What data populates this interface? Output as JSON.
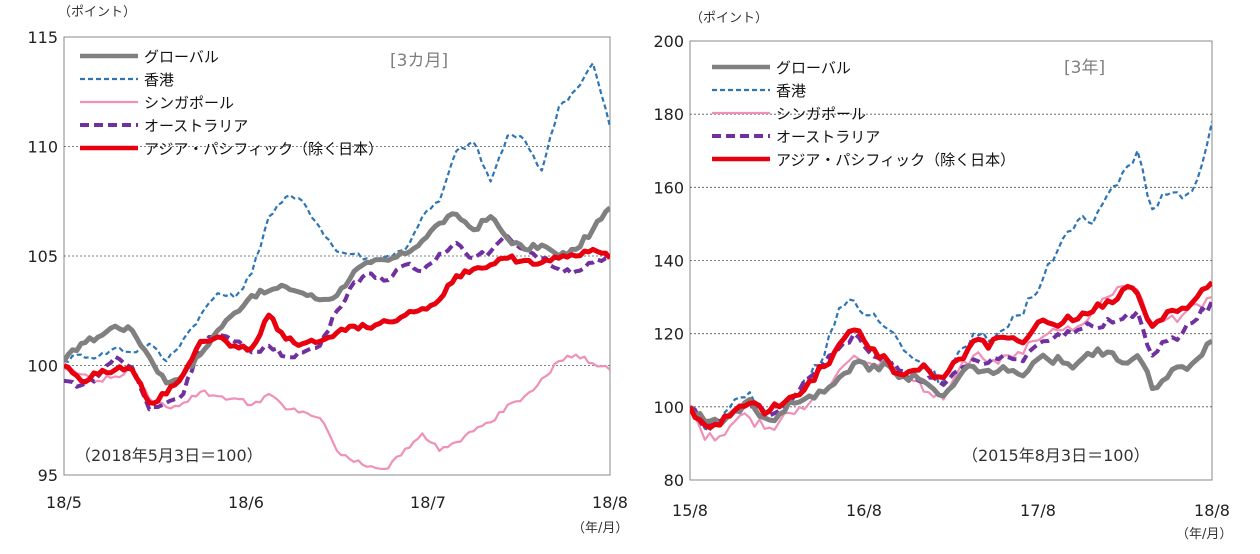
{
  "chart_data": [
    {
      "type": "line",
      "title": "[3カ月]",
      "y_unit": "（ポイント）",
      "x_unit": "（年/月）",
      "note": "（2018年5月3日＝100）",
      "ylim": [
        95,
        115
      ],
      "yticks": [
        "95",
        "100",
        "105",
        "110",
        "115"
      ],
      "xticks": [
        "18/5",
        "18/6",
        "18/7",
        "18/8"
      ],
      "grid": "horizontal dotted",
      "legend_position": "top-left",
      "series": [
        {
          "name": "グローバル",
          "color": "#808080",
          "style": "solid-thick",
          "values": [
            100.2,
            101.0,
            101.3,
            101.8,
            101.6,
            100.4,
            99.2,
            99.6,
            100.5,
            101.6,
            102.4,
            103.2,
            103.4,
            103.6,
            103.3,
            103.0,
            103.2,
            104.3,
            104.7,
            104.8,
            105.1,
            105.7,
            106.5,
            106.9,
            106.2,
            106.8,
            105.8,
            105.3,
            105.5,
            105.0,
            105.3,
            106.2,
            107.2
          ]
        },
        {
          "name": "香港",
          "color": "#2E75B6",
          "style": "dashed",
          "values": [
            100.2,
            100.5,
            100.4,
            100.8,
            100.6,
            101.0,
            100.2,
            101.2,
            102.3,
            103.3,
            103.1,
            104.2,
            106.8,
            107.7,
            107.5,
            106.3,
            105.2,
            105.1,
            104.8,
            105.0,
            105.3,
            106.8,
            107.5,
            109.8,
            110.2,
            108.4,
            110.5,
            110.3,
            108.9,
            111.8,
            112.6,
            113.8,
            110.9
          ]
        },
        {
          "name": "シンガポール",
          "color": "#F090B8",
          "style": "solid",
          "values": [
            99.9,
            99.6,
            99.3,
            99.5,
            99.8,
            98.5,
            98.1,
            98.3,
            98.8,
            98.6,
            98.5,
            98.2,
            98.7,
            98.0,
            97.9,
            97.6,
            96.1,
            95.6,
            95.4,
            95.3,
            96.2,
            96.9,
            96.1,
            96.5,
            97.0,
            97.4,
            98.2,
            98.6,
            99.4,
            100.2,
            100.5,
            100.1,
            99.8
          ]
        },
        {
          "name": "オーストラリア",
          "color": "#7030A0",
          "style": "dashed-thick",
          "values": [
            99.3,
            99.1,
            99.5,
            100.4,
            99.9,
            98.0,
            98.3,
            98.7,
            101.1,
            101.4,
            101.1,
            100.6,
            100.9,
            100.4,
            100.6,
            100.9,
            102.5,
            103.8,
            104.2,
            103.9,
            104.6,
            104.3,
            105.1,
            105.6,
            104.9,
            105.2,
            105.9,
            105.3,
            104.9,
            104.4,
            104.3,
            104.7,
            104.8
          ]
        },
        {
          "name": "アジア・パシフィック（除く日本）",
          "color": "#E8000F",
          "style": "solid-thick",
          "values": [
            100.0,
            99.3,
            99.6,
            99.8,
            99.8,
            98.3,
            98.7,
            99.6,
            101.1,
            101.3,
            100.9,
            100.8,
            102.3,
            101.2,
            101.0,
            101.1,
            101.5,
            101.8,
            101.7,
            102.0,
            102.3,
            102.6,
            103.0,
            104.1,
            104.4,
            104.6,
            104.9,
            104.8,
            104.7,
            104.9,
            105.0,
            105.3,
            104.9
          ]
        }
      ]
    },
    {
      "type": "line",
      "title": "[3年]",
      "y_unit": "（ポイント）",
      "x_unit": "（年/月）",
      "note": "（2015年8月3日＝100）",
      "ylim": [
        80,
        200
      ],
      "yticks": [
        "80",
        "100",
        "120",
        "140",
        "160",
        "180",
        "200"
      ],
      "xticks": [
        "15/8",
        "16/8",
        "17/8",
        "18/8"
      ],
      "grid": "horizontal dotted",
      "legend_position": "top-left",
      "series": [
        {
          "name": "グローバル",
          "color": "#808080",
          "style": "solid-thick",
          "values": [
            100,
            96,
            95,
            99,
            102,
            97,
            98,
            101,
            103,
            104,
            108,
            112,
            110,
            112,
            108,
            109,
            106,
            103,
            108,
            111,
            110,
            111,
            109,
            112,
            113,
            112,
            112,
            114,
            115,
            112,
            114,
            105,
            108,
            111,
            113,
            118
          ]
        },
        {
          "name": "香港",
          "color": "#2E75B6",
          "style": "dashed",
          "values": [
            100,
            94,
            95,
            102,
            104,
            99,
            100,
            103,
            108,
            114,
            127,
            129,
            125,
            122,
            118,
            113,
            110,
            107,
            115,
            120,
            118,
            121,
            125,
            130,
            139,
            146,
            151,
            150,
            158,
            164,
            170,
            154,
            158,
            157,
            162,
            178
          ]
        },
        {
          "name": "シンガポール",
          "color": "#F090B8",
          "style": "solid",
          "values": [
            100,
            91,
            92,
            96,
            97,
            94,
            96,
            98,
            101,
            104,
            110,
            114,
            112,
            113,
            108,
            107,
            104,
            102,
            110,
            114,
            112,
            114,
            115,
            118,
            120,
            121,
            122,
            126,
            130,
            133,
            132,
            123,
            124,
            125,
            128,
            130
          ]
        },
        {
          "name": "オーストラリア",
          "color": "#7030A0",
          "style": "dashed-thick",
          "values": [
            100,
            94,
            96,
            99,
            100,
            97,
            99,
            103,
            108,
            112,
            116,
            120,
            115,
            112,
            110,
            108,
            108,
            106,
            110,
            113,
            112,
            114,
            113,
            116,
            118,
            119,
            121,
            122,
            124,
            124,
            126,
            114,
            118,
            120,
            124,
            129
          ]
        },
        {
          "name": "アジア・パシフィック（除く日本）",
          "color": "#E8000F",
          "style": "solid-thick",
          "values": [
            100,
            95,
            95,
            99,
            101,
            98,
            100,
            103,
            107,
            111,
            117,
            121,
            116,
            114,
            109,
            110,
            110,
            108,
            113,
            118,
            116,
            119,
            118,
            121,
            123,
            123,
            124,
            126,
            129,
            132,
            131,
            122,
            126,
            127,
            130,
            134
          ]
        }
      ]
    }
  ]
}
